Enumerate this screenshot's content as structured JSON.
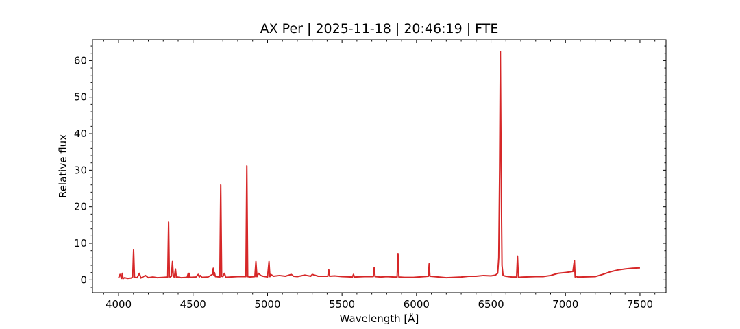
{
  "chart_data": {
    "type": "line",
    "title": "AX Per | 2025-11-18 | 20:46:19 | FTE",
    "xlabel": "Wavelength [Å]",
    "ylabel": "Relative flux",
    "xlim": [
      3825,
      7675
    ],
    "ylim": [
      -3.5,
      65.7
    ],
    "xticks": [
      4000,
      4500,
      5000,
      5500,
      6000,
      6500,
      7000,
      7500
    ],
    "yticks": [
      0,
      10,
      20,
      30,
      40,
      50,
      60
    ],
    "grid": false,
    "line_color": "#d62728",
    "series": [
      {
        "x": [
          4000,
          4010,
          4020,
          4025,
          4030,
          4040,
          4060,
          4085,
          4095,
          4101,
          4107,
          4125,
          4140,
          4150,
          4180,
          4200,
          4230,
          4260,
          4300,
          4330,
          4336,
          4341,
          4346,
          4355,
          4362,
          4368,
          4375,
          4382,
          4388,
          4395,
          4420,
          4460,
          4468,
          4471,
          4474,
          4480,
          4520,
          4535,
          4542,
          4548,
          4560,
          4600,
          4630,
          4636,
          4640,
          4644,
          4650,
          4680,
          4686,
          4692,
          4700,
          4711,
          4720,
          4750,
          4800,
          4855,
          4861,
          4867,
          4880,
          4915,
          4922,
          4929,
          4940,
          4955,
          4970,
          5000,
          5010,
          5016,
          5022,
          5040,
          5080,
          5120,
          5160,
          5175,
          5200,
          5250,
          5290,
          5300,
          5340,
          5405,
          5411,
          5417,
          5450,
          5500,
          5570,
          5577,
          5584,
          5650,
          5710,
          5716,
          5722,
          5760,
          5800,
          5850,
          5870,
          5876,
          5882,
          5920,
          5980,
          6050,
          6080,
          6085,
          6090,
          6120,
          6200,
          6250,
          6300,
          6350,
          6400,
          6450,
          6500,
          6530,
          6545,
          6552,
          6558,
          6563,
          6568,
          6574,
          6581,
          6600,
          6640,
          6672,
          6678,
          6684,
          6720,
          6800,
          6850,
          6900,
          6950,
          7000,
          7050,
          7060,
          7065,
          7070,
          7080,
          7100,
          7200,
          7250,
          7300,
          7350,
          7400,
          7450,
          7500
        ],
        "values": [
          0.5,
          1.5,
          0.4,
          1.8,
          0.3,
          0.6,
          0.4,
          0.5,
          0.8,
          8.2,
          0.7,
          0.6,
          1.8,
          0.5,
          1.2,
          0.6,
          0.8,
          0.6,
          0.7,
          0.8,
          15.8,
          0.9,
          0.8,
          1.0,
          5.0,
          0.9,
          0.8,
          3.0,
          0.7,
          0.8,
          0.6,
          0.7,
          1.8,
          0.6,
          1.8,
          0.7,
          0.8,
          1.5,
          0.8,
          1.2,
          0.7,
          0.8,
          1.5,
          3.2,
          1.2,
          2.0,
          0.9,
          0.8,
          26.0,
          1.0,
          0.9,
          1.8,
          0.7,
          0.8,
          0.9,
          0.9,
          31.2,
          0.9,
          0.8,
          0.9,
          5.0,
          0.9,
          1.8,
          1.2,
          1.0,
          0.8,
          5.0,
          0.9,
          1.5,
          1.0,
          1.2,
          1.0,
          1.5,
          1.0,
          0.9,
          1.3,
          1.0,
          1.5,
          1.0,
          1.0,
          2.8,
          1.0,
          1.1,
          0.9,
          0.8,
          1.5,
          0.8,
          0.9,
          0.9,
          3.4,
          0.9,
          0.8,
          0.9,
          0.8,
          0.8,
          7.2,
          0.8,
          0.7,
          0.7,
          0.9,
          1.0,
          4.4,
          1.0,
          0.9,
          0.6,
          0.7,
          0.8,
          1.0,
          1.0,
          1.2,
          1.1,
          1.3,
          1.8,
          6.0,
          30.0,
          62.5,
          30.0,
          4.0,
          1.2,
          1.0,
          0.8,
          0.8,
          6.5,
          0.7,
          0.8,
          0.9,
          0.9,
          1.2,
          1.8,
          2.0,
          2.3,
          5.3,
          0.8,
          1.0,
          0.8,
          0.8,
          0.9,
          1.5,
          2.2,
          2.7,
          3.0,
          3.2,
          3.3
        ]
      }
    ]
  }
}
